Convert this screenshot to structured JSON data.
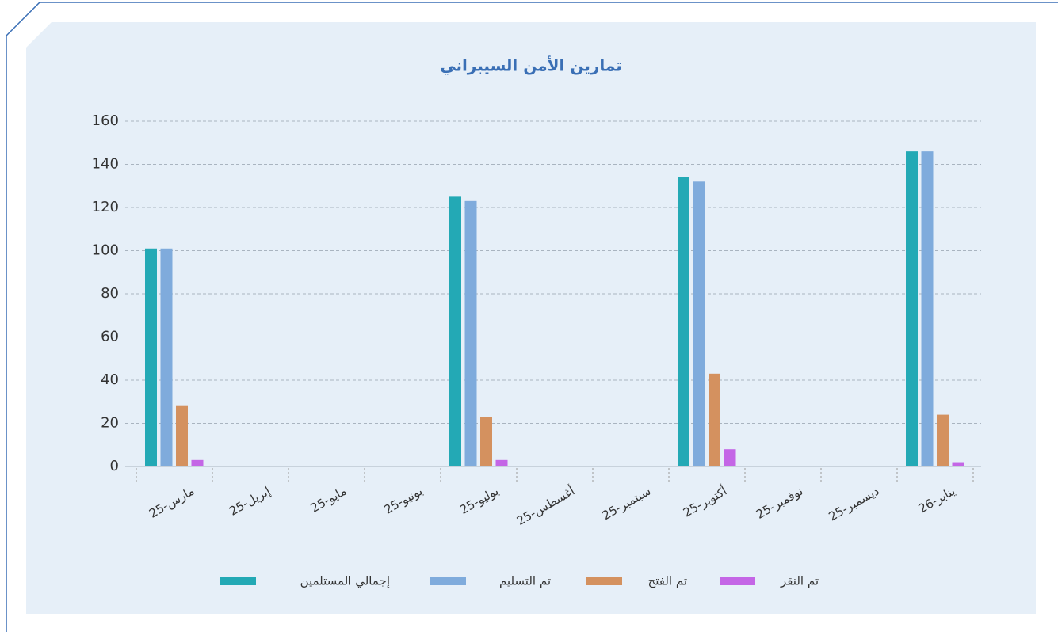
{
  "chart_data": {
    "type": "bar",
    "title": "تمارين الأمن السيبراني",
    "categories": [
      "مارس-25",
      "إبريل-25",
      "مايو-25",
      "يونيو-25",
      "يوليو-25",
      "أغسطس-25",
      "سبتمبر-25",
      "أكتوبر-25",
      "نوفمبر-25",
      "ديسمبر-25",
      "يناير-26"
    ],
    "series": [
      {
        "name": "إجمالي المستلمين",
        "color": "#23a9b5",
        "values": [
          101,
          null,
          null,
          null,
          125,
          null,
          null,
          134,
          null,
          null,
          146
        ]
      },
      {
        "name": "تم التسليم",
        "color": "#7fabdc",
        "values": [
          101,
          null,
          null,
          null,
          123,
          null,
          null,
          132,
          null,
          null,
          146
        ]
      },
      {
        "name": "تم الفتح",
        "color": "#d4915f",
        "values": [
          28,
          null,
          null,
          null,
          23,
          null,
          null,
          43,
          null,
          null,
          24
        ]
      },
      {
        "name": "تم النقر",
        "color": "#c466e6",
        "values": [
          3,
          null,
          null,
          null,
          3,
          null,
          null,
          8,
          null,
          null,
          2
        ]
      }
    ],
    "ylim": [
      0,
      160
    ],
    "yticks": [
      0,
      20,
      40,
      60,
      80,
      100,
      120,
      140,
      160
    ],
    "grid": true,
    "legend": "bottom"
  }
}
